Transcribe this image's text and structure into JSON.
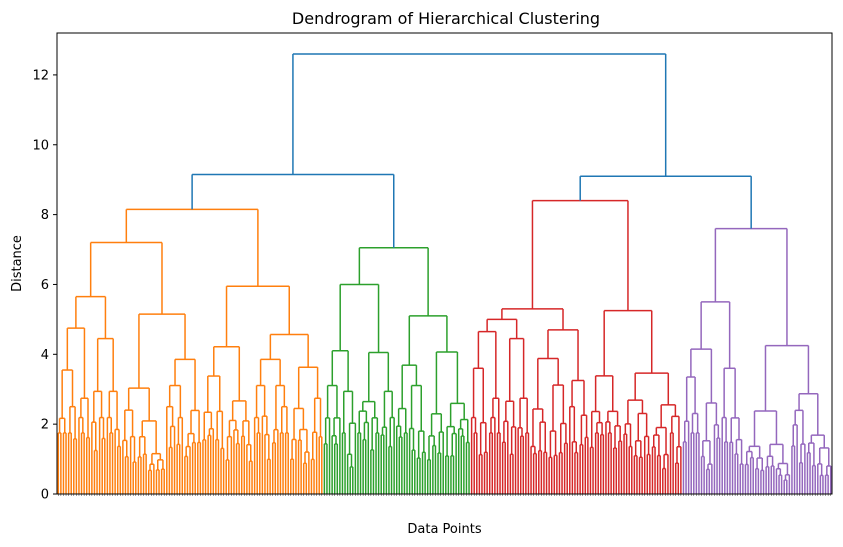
{
  "chart_data": {
    "type": "dendrogram",
    "title": "Dendrogram of Hierarchical Clustering",
    "xlabel": "Data Points",
    "ylabel": "Distance",
    "ylim": [
      0,
      13.2
    ],
    "yticks": [
      0,
      2,
      4,
      6,
      8,
      10,
      12
    ],
    "leaf_count": 300,
    "grid": false,
    "colors": {
      "above_threshold": "#1f77b4",
      "cluster_1": "#ff7f0e",
      "cluster_2": "#2ca02c",
      "cluster_3": "#d62728",
      "cluster_4": "#9467bd"
    },
    "top_merges": [
      {
        "children": [
          "left_group",
          "right_group"
        ],
        "distance": 12.6
      },
      {
        "children": [
          "cluster_1",
          "cluster_2"
        ],
        "distance": 9.15
      },
      {
        "children": [
          "cluster_3",
          "cluster_4"
        ],
        "distance": 9.1
      }
    ],
    "clusters": [
      {
        "name": "cluster_1",
        "color": "#ff7f0e",
        "leaves": 103,
        "distance": 8.15,
        "sub_distances": [
          7.2,
          5.95,
          5.65,
          5.15,
          4.75,
          4.45,
          3.55
        ]
      },
      {
        "name": "cluster_2",
        "color": "#2ca02c",
        "leaves": 57,
        "distance": 7.05,
        "sub_distances": [
          6.0,
          5.1,
          4.1,
          4.05
        ]
      },
      {
        "name": "cluster_3",
        "color": "#d62728",
        "leaves": 82,
        "distance": 8.4,
        "sub_distances": [
          5.3,
          5.25,
          5.0,
          4.7,
          4.65,
          4.45,
          3.6
        ]
      },
      {
        "name": "cluster_4",
        "color": "#9467bd",
        "leaves": 58,
        "distance": 7.6,
        "sub_distances": [
          5.5,
          4.25,
          4.15,
          3.6,
          3.35
        ]
      }
    ]
  }
}
